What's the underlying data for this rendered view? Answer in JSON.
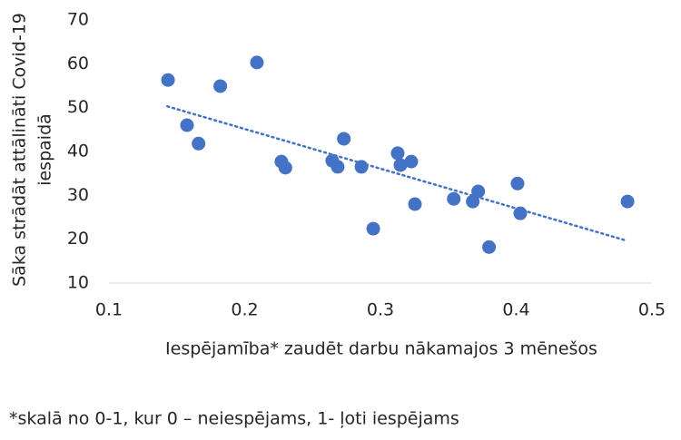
{
  "chart_data": {
    "type": "scatter",
    "x_label": "Iespējamība* zaudēt darbu nākamajos 3 mēnešos",
    "y_label": [
      "Sāka strādāt attālināti Covid-19",
      "iespaidā"
    ],
    "footnote": "*skalā no 0-1, kur 0 – neiespējams, 1- ļoti iespējams",
    "color": "#4472c4",
    "series": [
      {
        "x": [
          0.1435,
          0.1575,
          0.166,
          0.182,
          0.209,
          0.227,
          0.23,
          0.2645,
          0.2685,
          0.273,
          0.286,
          0.2947,
          0.3127,
          0.3147,
          0.3227,
          0.3254,
          0.354,
          0.368,
          0.372,
          0.38,
          0.401,
          0.403,
          0.482
        ],
        "values": [
          56.3,
          46.0,
          41.8,
          54.9,
          60.3,
          37.7,
          36.3,
          37.9,
          36.5,
          42.9,
          36.5,
          22.4,
          39.6,
          36.9,
          37.7,
          28.0,
          29.2,
          28.6,
          30.9,
          18.2,
          32.7,
          25.9,
          28.6
        ]
      }
    ],
    "trendline": {
      "x": [
        0.143,
        0.481
      ],
      "values": [
        50.3,
        19.7
      ]
    },
    "xlim": [
      0.1,
      0.5
    ],
    "xticks": [
      0.1,
      0.2,
      0.3,
      0.4,
      0.5
    ],
    "ylim": [
      10,
      70
    ],
    "yticks": [
      10,
      20,
      30,
      40,
      50,
      60,
      70
    ],
    "grid": false
  }
}
